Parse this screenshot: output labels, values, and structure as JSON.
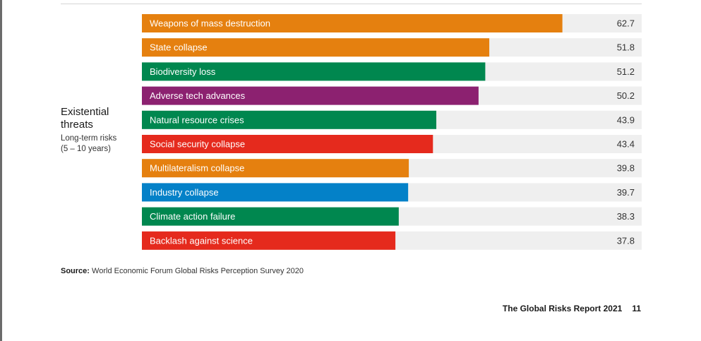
{
  "group": {
    "title_line1": "Existential",
    "title_line2": "threats",
    "subtitle_line1": "Long-term risks",
    "subtitle_line2": "(5 – 10 years)"
  },
  "chart_data": {
    "type": "bar",
    "orientation": "horizontal",
    "categories": [
      "Weapons of mass destruction",
      "State collapse",
      "Biodiversity loss",
      "Adverse tech advances",
      "Natural resource crises",
      "Social security collapse",
      "Multilateralism collapse",
      "Industry collapse",
      "Climate action failure",
      "Backlash against science"
    ],
    "values": [
      62.7,
      51.8,
      51.2,
      50.2,
      43.9,
      43.4,
      39.8,
      39.7,
      38.3,
      37.8
    ],
    "value_labels": [
      "62.7",
      "51.8",
      "51.2",
      "50.2",
      "43.9",
      "43.4",
      "39.8",
      "39.7",
      "38.3",
      "37.8"
    ],
    "colors": [
      "#e5800f",
      "#e5800f",
      "#00874f",
      "#8c2170",
      "#00874f",
      "#e52a1d",
      "#e5800f",
      "#0481c8",
      "#00874f",
      "#e52a1d"
    ],
    "track_color": "#efefef",
    "xlim": [
      0,
      100
    ],
    "grid": false,
    "legend": "none"
  },
  "source": {
    "label": "Source:",
    "text": "World Economic Forum Global Risks Perception Survey 2020"
  },
  "footer": {
    "report_title": "The Global Risks Report 2021",
    "page_number": "11"
  }
}
